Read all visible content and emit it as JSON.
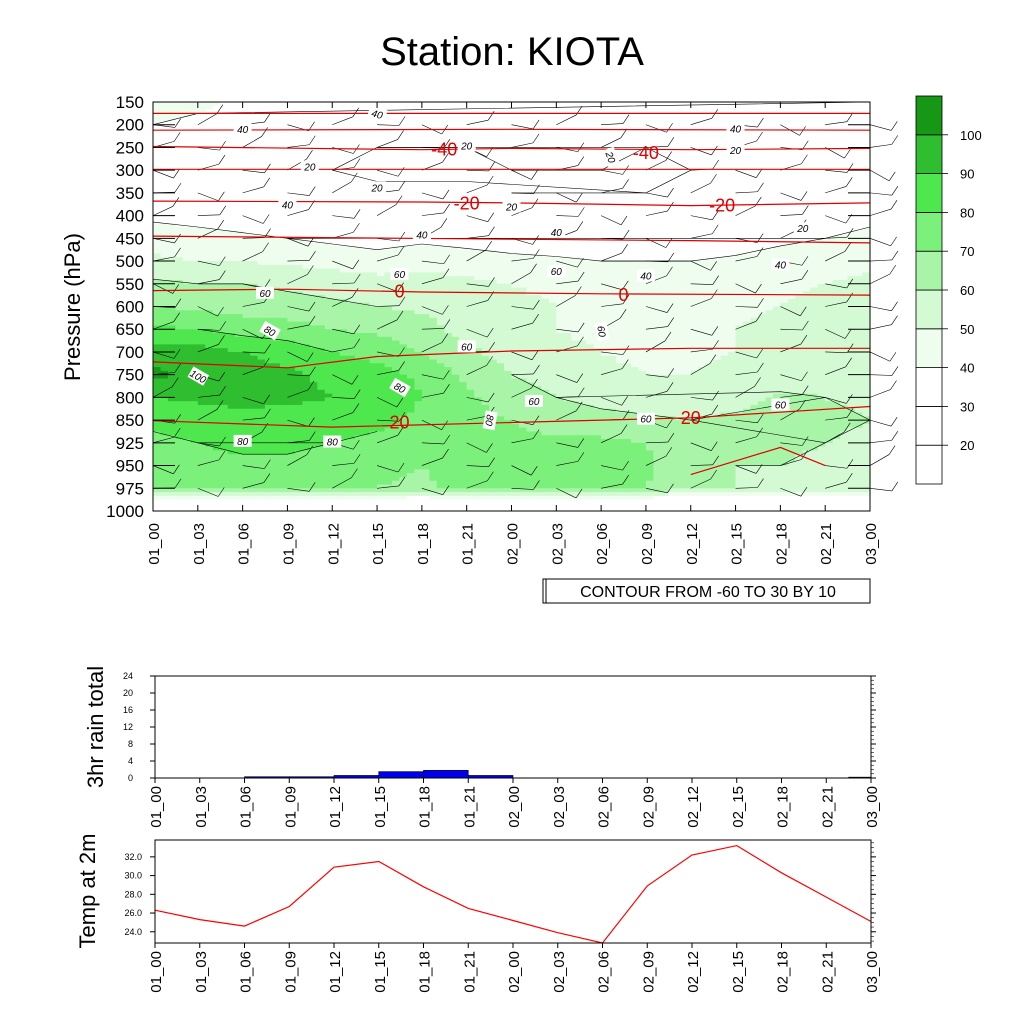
{
  "title": "Station: KIOTA",
  "time_labels": [
    "01_00",
    "01_03",
    "01_06",
    "01_09",
    "01_12",
    "01_15",
    "01_18",
    "01_21",
    "02_00",
    "02_03",
    "02_06",
    "02_09",
    "02_12",
    "02_15",
    "02_18",
    "02_21",
    "03_00"
  ],
  "chart_data": [
    {
      "type": "heatmap",
      "name": "cross-section",
      "ylabel": "Pressure (hPa)",
      "pressure_levels": [
        150,
        200,
        250,
        300,
        350,
        400,
        450,
        500,
        550,
        600,
        650,
        700,
        750,
        800,
        850,
        925,
        950,
        975,
        1000
      ],
      "contour_info": "CONTOUR FROM -60 TO 30 BY 10",
      "colorbar": {
        "levels": [
          20,
          30,
          40,
          50,
          60,
          70,
          80,
          90,
          100
        ],
        "colors": [
          "#ffffff",
          "#ffffff",
          "#ffffff",
          "#eefdee",
          "#d3fad3",
          "#a8f5a8",
          "#7bf07b",
          "#4ee84e",
          "#2fbe2f",
          "#169816"
        ]
      },
      "humidity_rows": [
        [
          45,
          42,
          38,
          35,
          30,
          28,
          25,
          25,
          30,
          32,
          28,
          25,
          28,
          30,
          32,
          35,
          40
        ],
        [
          40,
          38,
          35,
          32,
          28,
          25,
          22,
          22,
          25,
          28,
          25,
          22,
          25,
          28,
          30,
          32,
          35
        ],
        [
          35,
          32,
          28,
          25,
          22,
          20,
          20,
          20,
          22,
          25,
          22,
          20,
          22,
          25,
          28,
          30,
          32
        ],
        [
          30,
          28,
          25,
          22,
          20,
          18,
          18,
          18,
          20,
          22,
          20,
          18,
          20,
          22,
          25,
          28,
          30
        ],
        [
          35,
          32,
          30,
          28,
          25,
          22,
          22,
          22,
          20,
          22,
          20,
          20,
          22,
          25,
          28,
          30,
          32
        ],
        [
          38,
          36,
          34,
          32,
          30,
          28,
          28,
          26,
          25,
          24,
          22,
          22,
          25,
          28,
          32,
          35,
          38
        ],
        [
          45,
          44,
          42,
          40,
          38,
          36,
          38,
          36,
          34,
          32,
          30,
          30,
          32,
          34,
          38,
          40,
          42
        ],
        [
          52,
          50,
          50,
          48,
          46,
          44,
          46,
          45,
          43,
          42,
          40,
          40,
          40,
          42,
          44,
          46,
          48
        ],
        [
          62,
          60,
          60,
          58,
          56,
          54,
          55,
          52,
          50,
          48,
          46,
          44,
          44,
          45,
          48,
          50,
          52
        ],
        [
          70,
          68,
          66,
          64,
          62,
          60,
          58,
          55,
          52,
          50,
          48,
          46,
          46,
          48,
          50,
          52,
          54
        ],
        [
          82,
          80,
          76,
          74,
          70,
          68,
          64,
          56,
          52,
          50,
          48,
          48,
          48,
          50,
          52,
          54,
          55
        ],
        [
          96,
          94,
          90,
          86,
          80,
          76,
          70,
          62,
          56,
          52,
          50,
          48,
          48,
          50,
          52,
          54,
          55
        ],
        [
          102,
          98,
          95,
          92,
          88,
          84,
          78,
          68,
          60,
          56,
          52,
          50,
          50,
          52,
          54,
          56,
          56
        ],
        [
          90,
          92,
          94,
          92,
          90,
          86,
          80,
          72,
          64,
          60,
          56,
          54,
          54,
          56,
          62,
          60,
          58
        ],
        [
          82,
          84,
          86,
          86,
          84,
          82,
          78,
          74,
          70,
          66,
          64,
          62,
          60,
          62,
          64,
          62,
          60
        ],
        [
          78,
          80,
          82,
          82,
          80,
          78,
          76,
          74,
          72,
          72,
          72,
          70,
          62,
          62,
          62,
          60,
          58
        ],
        [
          76,
          78,
          78,
          78,
          76,
          72,
          70,
          74,
          74,
          74,
          74,
          72,
          64,
          60,
          60,
          58,
          56
        ],
        [
          74,
          76,
          76,
          76,
          74,
          70,
          68,
          74,
          74,
          74,
          74,
          70,
          62,
          60,
          58,
          56,
          55
        ],
        [
          0,
          0,
          0,
          0,
          0,
          0,
          0,
          0,
          0,
          0,
          0,
          0,
          0,
          0,
          0,
          0,
          0
        ]
      ],
      "contour_labels": [
        {
          "text": "40",
          "t": 2.0,
          "p": 212,
          "rot": 0
        },
        {
          "text": "40",
          "t": 5.0,
          "p": 178,
          "rot": 15
        },
        {
          "text": "20",
          "t": 3.5,
          "p": 294,
          "rot": 0
        },
        {
          "text": "20",
          "t": 5.0,
          "p": 340,
          "rot": 0
        },
        {
          "text": "40",
          "t": 3.0,
          "p": 378,
          "rot": 0
        },
        {
          "text": "20",
          "t": 7.0,
          "p": 248,
          "rot": 0
        },
        {
          "text": "20",
          "t": 8.0,
          "p": 382,
          "rot": 0
        },
        {
          "text": "20",
          "t": 10.2,
          "p": 272,
          "rot": 70
        },
        {
          "text": "40",
          "t": 13.0,
          "p": 210,
          "rot": 0
        },
        {
          "text": "20",
          "t": 13.0,
          "p": 258,
          "rot": 0
        },
        {
          "text": "40",
          "t": 6.0,
          "p": 444,
          "rot": 0
        },
        {
          "text": "40",
          "t": 9.0,
          "p": 438,
          "rot": 0
        },
        {
          "text": "20",
          "t": 14.5,
          "p": 430,
          "rot": 0
        },
        {
          "text": "40",
          "t": 14.0,
          "p": 510,
          "rot": 0
        },
        {
          "text": "60",
          "t": 5.5,
          "p": 531,
          "rot": 0
        },
        {
          "text": "60",
          "t": 9.0,
          "p": 524,
          "rot": 0
        },
        {
          "text": "40",
          "t": 11.0,
          "p": 534,
          "rot": 0
        },
        {
          "text": "60",
          "t": 2.5,
          "p": 572,
          "rot": 0
        },
        {
          "text": "80",
          "t": 2.6,
          "p": 655,
          "rot": 30
        },
        {
          "text": "60",
          "t": 10.0,
          "p": 655,
          "rot": 80
        },
        {
          "text": "60",
          "t": 7.0,
          "p": 690,
          "rot": 0
        },
        {
          "text": "100",
          "t": 1.0,
          "p": 755,
          "rot": 30
        },
        {
          "text": "80",
          "t": 5.5,
          "p": 780,
          "rot": 30
        },
        {
          "text": "60",
          "t": 8.5,
          "p": 810,
          "rot": 0
        },
        {
          "text": "80",
          "t": 7.5,
          "p": 850,
          "rot": 100
        },
        {
          "text": "60",
          "t": 11.0,
          "p": 849,
          "rot": 0
        },
        {
          "text": "60",
          "t": 14.0,
          "p": 818,
          "rot": 0
        },
        {
          "text": "80",
          "t": 2.0,
          "p": 922,
          "rot": 0
        },
        {
          "text": "80",
          "t": 4.0,
          "p": 924,
          "rot": 0
        }
      ],
      "temperature_labels": [
        {
          "text": "-40",
          "t": 6.5,
          "p": 255
        },
        {
          "text": "-40",
          "t": 11.0,
          "p": 262
        },
        {
          "text": "-20",
          "t": 7.0,
          "p": 373
        },
        {
          "text": "-20",
          "t": 12.7,
          "p": 378
        },
        {
          "text": "0",
          "t": 5.5,
          "p": 567
        },
        {
          "text": "0",
          "t": 10.5,
          "p": 575
        },
        {
          "text": "20",
          "t": 5.5,
          "p": 858
        },
        {
          "text": "20",
          "t": 12.0,
          "p": 845
        }
      ],
      "temperature_contours": [
        [
          [
            0,
            175
          ],
          [
            16,
            175
          ]
        ],
        [
          [
            0,
            212
          ],
          [
            8,
            210
          ],
          [
            16,
            212
          ]
        ],
        [
          [
            0,
            248
          ],
          [
            6,
            255
          ],
          [
            8,
            252
          ],
          [
            12,
            255
          ],
          [
            16,
            252
          ]
        ],
        [
          [
            0,
            298
          ],
          [
            8,
            298
          ],
          [
            16,
            298
          ]
        ],
        [
          [
            0,
            368
          ],
          [
            6,
            370
          ],
          [
            8,
            372
          ],
          [
            12,
            378
          ],
          [
            16,
            372
          ]
        ],
        [
          [
            0,
            445
          ],
          [
            8,
            452
          ],
          [
            12,
            455
          ],
          [
            16,
            460
          ]
        ],
        [
          [
            0,
            565
          ],
          [
            3,
            562
          ],
          [
            6,
            568
          ],
          [
            10,
            572
          ],
          [
            16,
            575
          ]
        ],
        [
          [
            0,
            722
          ],
          [
            3,
            735
          ],
          [
            5,
            710
          ],
          [
            8,
            698
          ],
          [
            12,
            692
          ],
          [
            16,
            692
          ]
        ],
        [
          [
            0,
            852
          ],
          [
            4,
            873
          ],
          [
            8,
            858
          ],
          [
            12,
            845
          ],
          [
            16,
            820
          ]
        ],
        [
          [
            12,
            960
          ],
          [
            14,
            930
          ],
          [
            15,
            950
          ]
        ]
      ]
    },
    {
      "type": "bar",
      "name": "rain",
      "ylabel": "3hr rain total",
      "yticks": [
        0,
        4,
        8,
        12,
        16,
        20,
        24
      ],
      "ylim": [
        0,
        24
      ],
      "values": [
        0,
        0,
        0.3,
        0.3,
        0.6,
        1.5,
        1.8,
        0.6,
        0,
        0,
        0,
        0,
        0,
        0,
        0,
        0,
        0.2
      ]
    },
    {
      "type": "line",
      "name": "temperature",
      "ylabel": "Temp at 2m",
      "yticks": [
        "24.0",
        "26.0",
        "28.0",
        "30.0",
        "32.0"
      ],
      "ylim": [
        22.8,
        33.8
      ],
      "values": [
        26.3,
        25.3,
        24.6,
        26.7,
        30.9,
        31.5,
        28.8,
        26.5,
        25.2,
        23.9,
        22.8,
        28.9,
        32.2,
        33.2,
        30.3,
        27.7,
        25.1
      ],
      "color": "#ff0000"
    }
  ]
}
